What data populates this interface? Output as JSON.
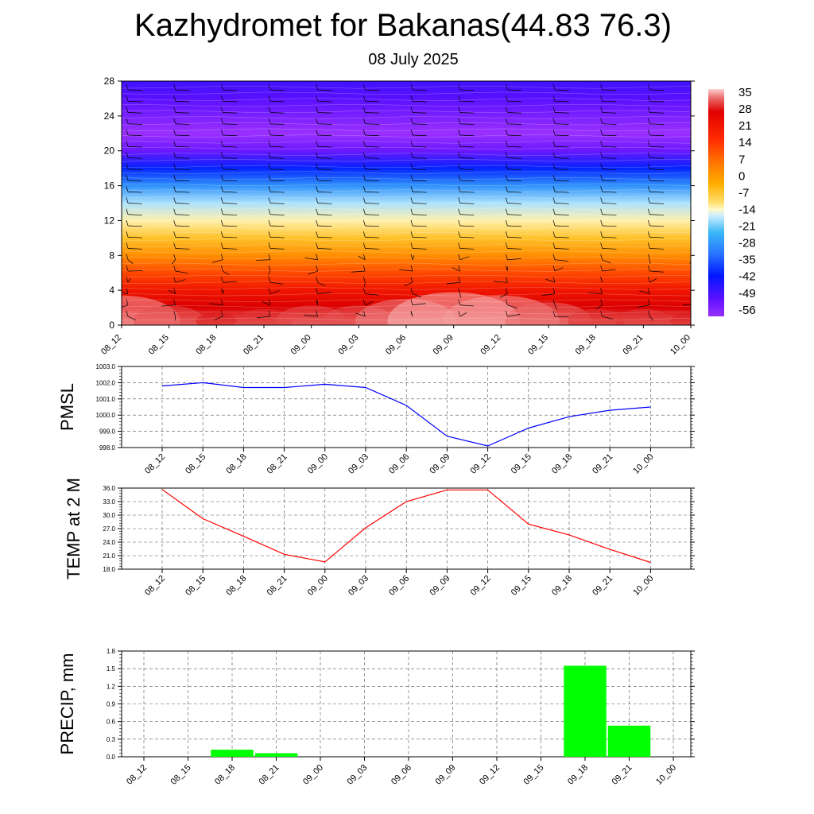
{
  "header": {
    "title": "Kazhydromet for Bakanas(44.83 76.3)",
    "date": "08 July 2025"
  },
  "chart_data": [
    {
      "type": "heatmap",
      "name": "temperature-cross-section",
      "x_ticks": [
        "08_12",
        "08_15",
        "08_18",
        "08_21",
        "09_00",
        "09_03",
        "09_06",
        "09_09",
        "09_12",
        "09_15",
        "09_18",
        "09_21",
        "10_00"
      ],
      "y_ticks": [
        0,
        4,
        8,
        12,
        16,
        20,
        24,
        28
      ],
      "ylim": [
        0,
        28
      ],
      "colorbar_labels": [
        "35",
        "28",
        "21",
        "14",
        "7",
        "0",
        "-7",
        "-14",
        "-21",
        "-28",
        "-35",
        "-42",
        "-49",
        "-56"
      ],
      "colorbar_range": [
        -60,
        38
      ],
      "levels_km": [
        0,
        2,
        4,
        6,
        8,
        10,
        12,
        14,
        16,
        18,
        20,
        22,
        24,
        26,
        28
      ],
      "temperature_profile": [
        34,
        27,
        20,
        13,
        5,
        -3,
        -12,
        -22,
        -36,
        -48,
        -57,
        -60,
        -58,
        -56,
        -54
      ],
      "surface_max_by_time": [
        36,
        33,
        31,
        32,
        33,
        33,
        35,
        37,
        36,
        34,
        32,
        32,
        31
      ],
      "wind_barbs": true
    },
    {
      "type": "line",
      "name": "pmsl",
      "ylabel": "PMSL",
      "color": "#0000ff",
      "x": [
        "08_12",
        "08_15",
        "08_18",
        "08_21",
        "09_00",
        "09_03",
        "09_06",
        "09_09",
        "09_12",
        "09_15",
        "09_18",
        "09_21",
        "10_00"
      ],
      "values": [
        1001.8,
        1002.0,
        1001.7,
        1001.7,
        1001.9,
        1001.7,
        1000.6,
        998.7,
        998.1,
        999.2,
        999.9,
        1000.3,
        1000.5
      ],
      "ylim": [
        998.0,
        1003.0
      ],
      "y_tick_labels": [
        "1003.0",
        "1002.0",
        "1001.0",
        "1000.0",
        "999.0",
        "998.0"
      ]
    },
    {
      "type": "line",
      "name": "temp-2m",
      "ylabel": "TEMP at 2 M",
      "color": "#ff0000",
      "x": [
        "08_12",
        "08_15",
        "08_18",
        "08_21",
        "09_00",
        "09_03",
        "09_06",
        "09_09",
        "09_12",
        "09_15",
        "09_18",
        "09_21",
        "10_00"
      ],
      "values": [
        35.7,
        29.2,
        25.3,
        21.3,
        19.6,
        27.2,
        33.0,
        35.6,
        35.6,
        28.0,
        25.6,
        22.4,
        19.5
      ],
      "ylim": [
        18.0,
        36.0
      ],
      "y_tick_labels": [
        "36.0",
        "33.0",
        "30.0",
        "27.0",
        "24.0",
        "21.0",
        "18.0"
      ]
    },
    {
      "type": "bar",
      "name": "precip",
      "ylabel": "PRECIP, mm",
      "color": "#00ff00",
      "x": [
        "08_12",
        "08_15",
        "08_18",
        "08_21",
        "09_00",
        "09_03",
        "09_06",
        "09_09",
        "09_12",
        "09_15",
        "09_18",
        "09_21",
        "10_00"
      ],
      "values": [
        0,
        0,
        0.12,
        0.06,
        0,
        0,
        0,
        0,
        0,
        0,
        1.55,
        0.53,
        0
      ],
      "ylim": [
        0,
        1.8
      ],
      "y_tick_labels": [
        "1.8",
        "1.5",
        "1.2",
        "0.9",
        "0.6",
        "0.3",
        "0.0"
      ]
    }
  ]
}
